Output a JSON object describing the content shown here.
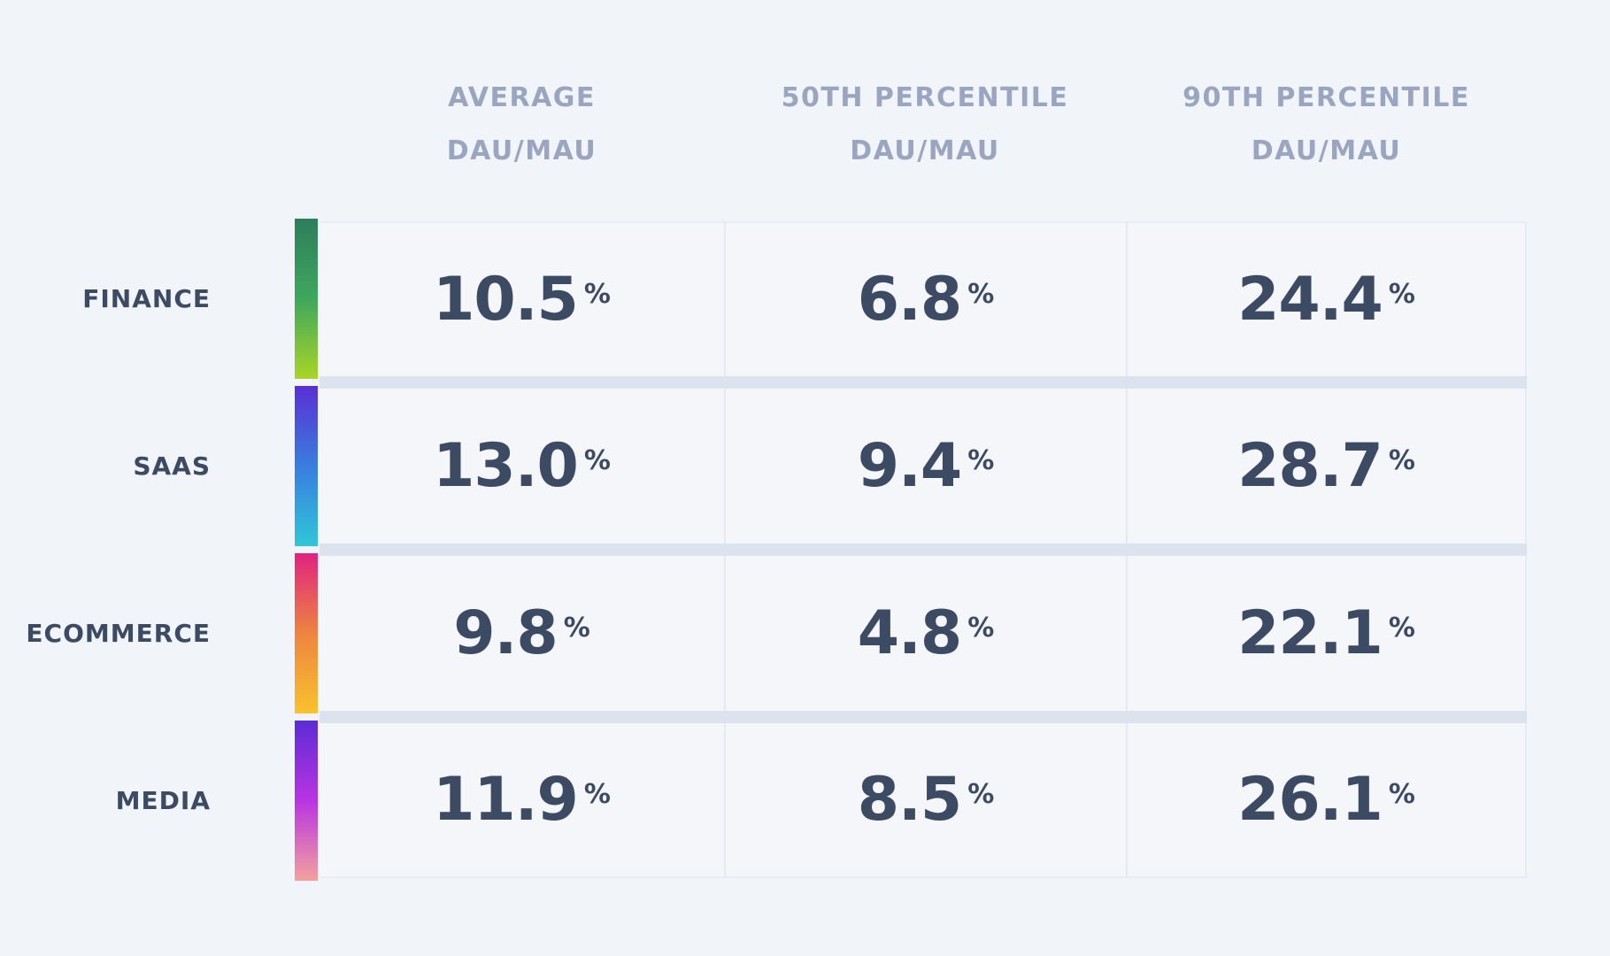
{
  "colors": {
    "page-bg": "#f1f4f9",
    "cell-bg": "#f4f6fa",
    "row-divider": "#dde3ee",
    "cell-border": "#e4e9f2",
    "table-edge": "#e8edf5",
    "heading": "#9aa5c0",
    "text": "#3d4a63"
  },
  "table": {
    "unit": "%",
    "columns": [
      {
        "line1": "AVERAGE",
        "line2": "DAU/MAU"
      },
      {
        "line1": "50TH PERCENTILE",
        "line2": "DAU/MAU"
      },
      {
        "line1": "90TH PERCENTILE",
        "line2": "DAU/MAU"
      }
    ],
    "rows": [
      {
        "label": "FINANCE",
        "gradient": {
          "from": "#2e7d5c",
          "mid": "#3fa75d",
          "to": "#a9d527"
        },
        "values": [
          "10.5",
          "6.8",
          "24.4"
        ]
      },
      {
        "label": "SAAS",
        "gradient": {
          "from": "#5a2fd2",
          "mid": "#3a7de0",
          "to": "#30c6d9"
        },
        "values": [
          "13.0",
          "9.4",
          "28.7"
        ]
      },
      {
        "label": "ECOMMERCE",
        "gradient": {
          "from": "#e02380",
          "mid": "#ee8440",
          "to": "#f9c22e"
        },
        "values": [
          "9.8",
          "4.8",
          "22.1"
        ]
      },
      {
        "label": "MEDIA",
        "gradient": {
          "from": "#5c2bd5",
          "mid": "#b934e2",
          "to": "#f4a19d"
        },
        "values": [
          "11.9",
          "8.5",
          "26.1"
        ]
      }
    ]
  },
  "chart_data": {
    "type": "table",
    "row_labels": [
      "FINANCE",
      "SAAS",
      "ECOMMERCE",
      "MEDIA"
    ],
    "column_labels": [
      "AVERAGE DAU/MAU",
      "50TH PERCENTILE DAU/MAU",
      "90TH PERCENTILE DAU/MAU"
    ],
    "unit": "%",
    "series": [
      {
        "name": "AVERAGE DAU/MAU",
        "values": [
          10.5,
          13.0,
          9.8,
          11.9
        ]
      },
      {
        "name": "50TH PERCENTILE DAU/MAU",
        "values": [
          6.8,
          9.4,
          4.8,
          8.5
        ]
      },
      {
        "name": "90TH PERCENTILE DAU/MAU",
        "values": [
          24.4,
          28.7,
          22.1,
          26.1
        ]
      }
    ]
  }
}
